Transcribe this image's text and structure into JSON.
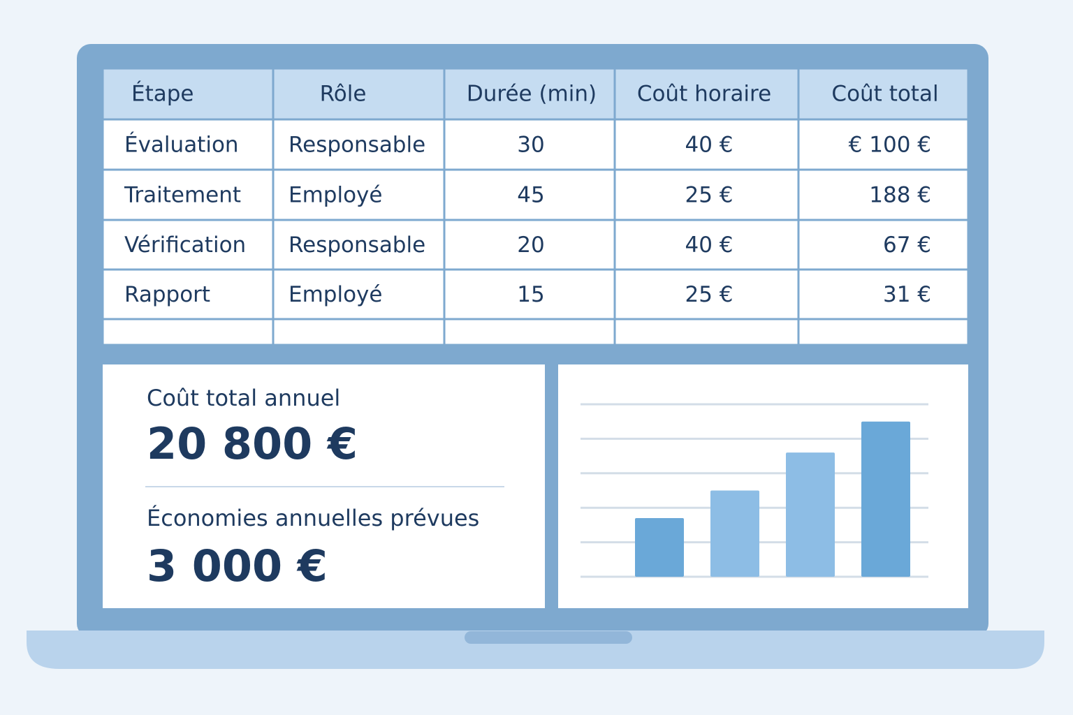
{
  "table": {
    "header": [
      "Étape",
      "Rôle",
      "Durée (min)",
      "Coût horaire",
      "Coût total"
    ],
    "rows": [
      [
        "Évaluation",
        "Responsable",
        "30",
        "40 €",
        "€ 100 €"
      ],
      [
        "Traitement",
        "Employé",
        "45",
        "25 €",
        "188 €"
      ],
      [
        "Vérification",
        "Responsable",
        "20",
        "40 €",
        "67 €"
      ],
      [
        "Rapport",
        "Employé",
        "15",
        "25 €",
        "31 €"
      ]
    ]
  },
  "summary": {
    "total_label": "Coût total annuel",
    "total_value": "20 800 €",
    "savings_label": "Économies annuelles prévues",
    "savings_value": "3 000 €"
  },
  "chart_data": {
    "type": "bar",
    "values": [
      1.7,
      2.5,
      3.6,
      4.5
    ],
    "colors": [
      "#6aa8d8",
      "#8dbde5",
      "#8dbde5",
      "#6aa8d8"
    ],
    "ylim": [
      0,
      5
    ],
    "yticks": [
      0,
      1,
      2,
      3,
      4,
      5
    ],
    "grid": true
  }
}
